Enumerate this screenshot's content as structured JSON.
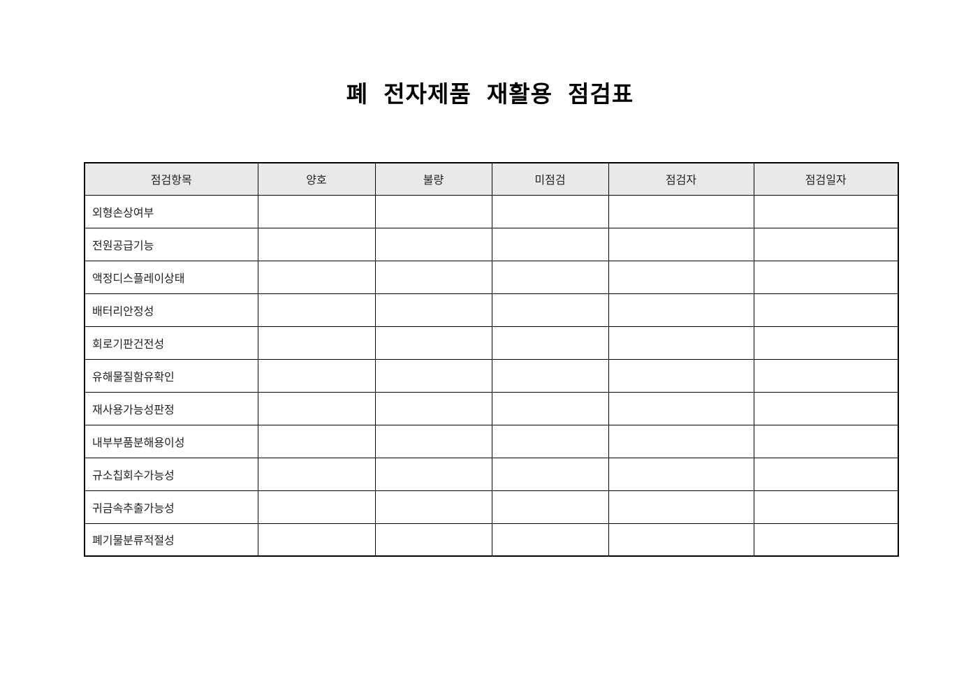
{
  "page": {
    "title": "폐 전자제품 재활용 점검표"
  },
  "table": {
    "columns": [
      "점검항목",
      "양호",
      "불량",
      "미점검",
      "점검자",
      "점검일자"
    ],
    "column_keys": [
      "item",
      "good",
      "bad",
      "unchecked",
      "inspector",
      "date"
    ],
    "rows": [
      {
        "item": "외형손상여부",
        "good": "",
        "bad": "",
        "unchecked": "",
        "inspector": "",
        "date": ""
      },
      {
        "item": "전원공급기능",
        "good": "",
        "bad": "",
        "unchecked": "",
        "inspector": "",
        "date": ""
      },
      {
        "item": "액정디스플레이상태",
        "good": "",
        "bad": "",
        "unchecked": "",
        "inspector": "",
        "date": ""
      },
      {
        "item": "배터리안정성",
        "good": "",
        "bad": "",
        "unchecked": "",
        "inspector": "",
        "date": ""
      },
      {
        "item": "회로기판건전성",
        "good": "",
        "bad": "",
        "unchecked": "",
        "inspector": "",
        "date": ""
      },
      {
        "item": "유해물질함유확인",
        "good": "",
        "bad": "",
        "unchecked": "",
        "inspector": "",
        "date": ""
      },
      {
        "item": "재사용가능성판정",
        "good": "",
        "bad": "",
        "unchecked": "",
        "inspector": "",
        "date": ""
      },
      {
        "item": "내부부품분해용이성",
        "good": "",
        "bad": "",
        "unchecked": "",
        "inspector": "",
        "date": ""
      },
      {
        "item": "규소칩회수가능성",
        "good": "",
        "bad": "",
        "unchecked": "",
        "inspector": "",
        "date": ""
      },
      {
        "item": "귀금속추출가능성",
        "good": "",
        "bad": "",
        "unchecked": "",
        "inspector": "",
        "date": ""
      },
      {
        "item": "폐기물분류적절성",
        "good": "",
        "bad": "",
        "unchecked": "",
        "inspector": "",
        "date": ""
      }
    ]
  },
  "colors": {
    "header_background": "#e9e9e9",
    "border": "#000000",
    "text": "#222222",
    "page_background": "#ffffff"
  }
}
